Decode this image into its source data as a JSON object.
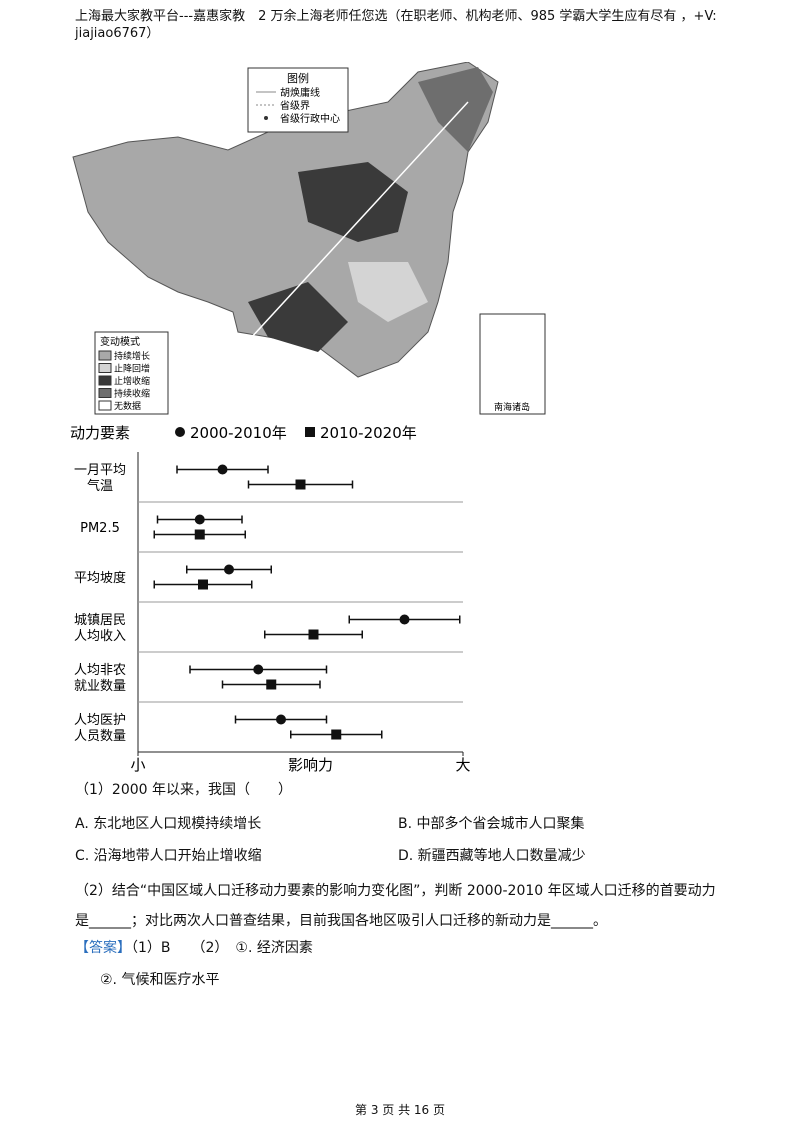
{
  "document": {
    "header": "上海最大家教平台---嘉惠家教　2 万余上海老师任您选（在职老师、机构老师、985 学霸大学生应有尽有 ，+V: jiajiao6767）",
    "question1": "（1）2000 年以来，我国（　　）",
    "options": [
      "A. 东北地区人口规模持续增长",
      "B. 中部多个省会城市人口聚集",
      "C. 沿海地带人口开始止增收缩",
      "D. 新疆西藏等地人口数量减少"
    ],
    "question2": "（2）结合“中国区域人口迁移动力要素的影响力变化图”，判断 2000-2010 年区域人口迁移的首要动力是______；对比两次人口普查结果，目前我国各地区吸引人口迁移的新动力是______。",
    "answer_tag": "【答案】",
    "answer1": "（1）B　　（2）　①. 经济因素",
    "answer2": "②. 气候和医疗水平",
    "footer": "第 3 页 共 16 页"
  },
  "map": {
    "legend_title": "图例",
    "legend_items": [
      "胡焕庸线",
      "省级界",
      "省级行政中心"
    ],
    "mode_title": "变动模式",
    "modes": [
      {
        "label": "持续增长",
        "color": "#a8a8a8"
      },
      {
        "label": "止降回增",
        "color": "#d4d4d4"
      },
      {
        "label": "止增收缩",
        "color": "#3a3a3a"
      },
      {
        "label": "持续收缩",
        "color": "#6e6e6e"
      },
      {
        "label": "无数据",
        "color": "#ffffff"
      }
    ],
    "inset": "南海诸岛"
  },
  "chart_data": {
    "type": "errorbar",
    "y_title": "动力要素",
    "x_title": "影响力",
    "categories": [
      "一月平均\n气温",
      "PM2.5",
      "平均坡度",
      "城镇居民\n人均收入",
      "人均非农\n就业数量",
      "人均医护\n人员数量"
    ],
    "xlim": [
      0,
      100
    ],
    "xticks": [
      {
        "value": 0,
        "label": "小"
      },
      {
        "value": 100,
        "label": "大"
      }
    ],
    "series": [
      {
        "name": "2000-2010年",
        "marker": "circle",
        "color": "#111111",
        "values": [
          26,
          19,
          28,
          82,
          37,
          44
        ],
        "errors": [
          14,
          13,
          13,
          17,
          21,
          14
        ]
      },
      {
        "name": "2010-2020年",
        "marker": "square",
        "color": "#111111",
        "values": [
          50,
          19,
          20,
          54,
          41,
          61
        ],
        "errors": [
          16,
          14,
          15,
          15,
          15,
          14
        ]
      }
    ]
  }
}
